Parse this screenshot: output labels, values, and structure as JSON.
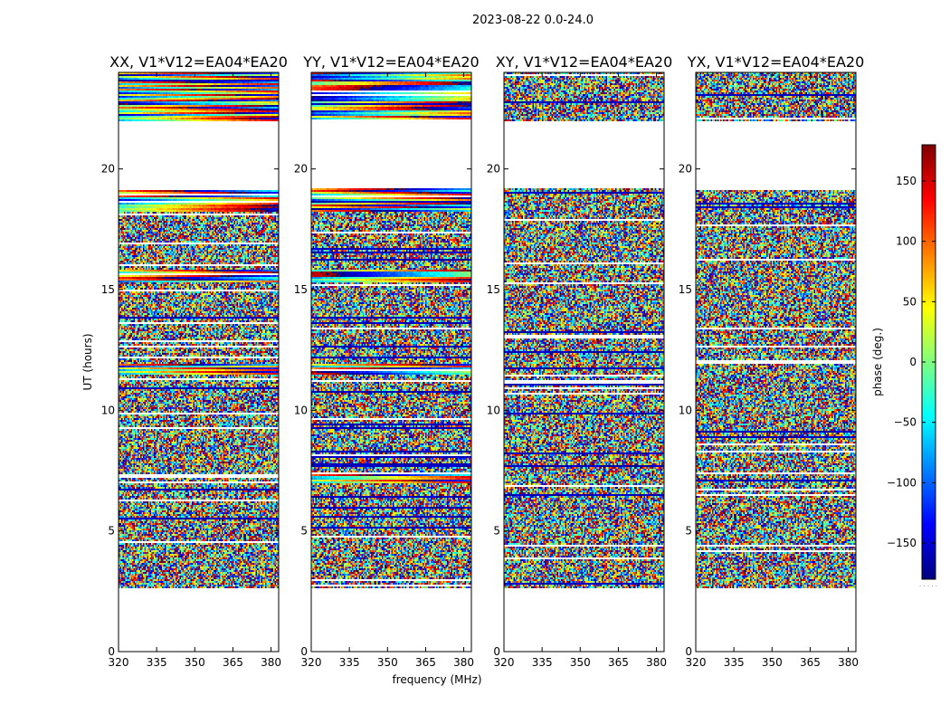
{
  "figure": {
    "suptitle": "2023-08-22 0.0-24.0",
    "xlabel": "frequency (MHz)",
    "ylabel": "UT (hours)",
    "colorbar_label": "phase (deg.)",
    "colorbar_ticks": [
      "150",
      "100",
      "50",
      "0",
      "−50",
      "−100",
      "−150"
    ],
    "colorbar_foot": ". . . . ."
  },
  "colors": {
    "colormap": "jet",
    "stops": [
      "#00007f",
      "#0000ff",
      "#007fff",
      "#00ffff",
      "#7fff7f",
      "#ffff00",
      "#ff7f00",
      "#ff0000",
      "#7f0000"
    ],
    "flagged": "#ffffff"
  },
  "chart_data": [
    {
      "type": "heatmap",
      "title": "XX, V1*V12=EA04*EA20",
      "x_ticks": [
        "320",
        "335",
        "350",
        "365",
        "380"
      ],
      "y_ticks": [
        "0",
        "5",
        "10",
        "15",
        "20"
      ],
      "xlim": [
        320,
        383
      ],
      "ylim": [
        0,
        24
      ],
      "colorbar_range": [
        -180,
        180
      ],
      "value": "phase (deg.)",
      "coherent_time_ranges_h": [
        [
          22.0,
          24.0
        ],
        [
          18.2,
          19.2
        ],
        [
          15.3,
          15.8
        ],
        [
          11.5,
          11.9
        ]
      ],
      "data_time_ranges_h": [
        [
          2.6,
          19.2
        ],
        [
          22.0,
          24.0
        ]
      ],
      "gap_time_ranges_h": [
        [
          0.0,
          2.6
        ],
        [
          19.2,
          22.0
        ]
      ]
    },
    {
      "type": "heatmap",
      "title": "YY, V1*V12=EA04*EA20",
      "x_ticks": [
        "320",
        "335",
        "350",
        "365",
        "380"
      ],
      "y_ticks": [
        "0",
        "5",
        "10",
        "15",
        "20"
      ],
      "xlim": [
        320,
        383
      ],
      "ylim": [
        0,
        24
      ],
      "colorbar_range": [
        -180,
        180
      ],
      "value": "phase (deg.)",
      "coherent_time_ranges_h": [
        [
          22.0,
          24.0
        ],
        [
          18.2,
          19.2
        ],
        [
          15.3,
          15.8
        ],
        [
          11.5,
          11.9
        ],
        [
          7.0,
          7.4
        ]
      ],
      "data_time_ranges_h": [
        [
          2.6,
          19.2
        ],
        [
          22.0,
          24.0
        ]
      ],
      "gap_time_ranges_h": [
        [
          0.0,
          2.6
        ],
        [
          19.2,
          22.0
        ]
      ]
    },
    {
      "type": "heatmap",
      "title": "XY, V1*V12=EA04*EA20",
      "x_ticks": [
        "320",
        "335",
        "350",
        "365",
        "380"
      ],
      "y_ticks": [
        "0",
        "5",
        "10",
        "15",
        "20"
      ],
      "xlim": [
        320,
        383
      ],
      "ylim": [
        0,
        24
      ],
      "colorbar_range": [
        -180,
        180
      ],
      "value": "phase (deg.)",
      "coherent_time_ranges_h": [],
      "data_time_ranges_h": [
        [
          2.6,
          19.2
        ],
        [
          22.0,
          24.0
        ]
      ],
      "gap_time_ranges_h": [
        [
          0.0,
          2.6
        ],
        [
          19.2,
          22.0
        ]
      ]
    },
    {
      "type": "heatmap",
      "title": "YX, V1*V12=EA04*EA20",
      "x_ticks": [
        "320",
        "335",
        "350",
        "365",
        "380"
      ],
      "y_ticks": [
        "0",
        "5",
        "10",
        "15",
        "20"
      ],
      "xlim": [
        320,
        383
      ],
      "ylim": [
        0,
        24
      ],
      "colorbar_range": [
        -180,
        180
      ],
      "value": "phase (deg.)",
      "coherent_time_ranges_h": [],
      "data_time_ranges_h": [
        [
          2.6,
          19.2
        ],
        [
          22.0,
          24.0
        ]
      ],
      "gap_time_ranges_h": [
        [
          0.0,
          2.6
        ],
        [
          19.2,
          22.0
        ]
      ]
    }
  ]
}
